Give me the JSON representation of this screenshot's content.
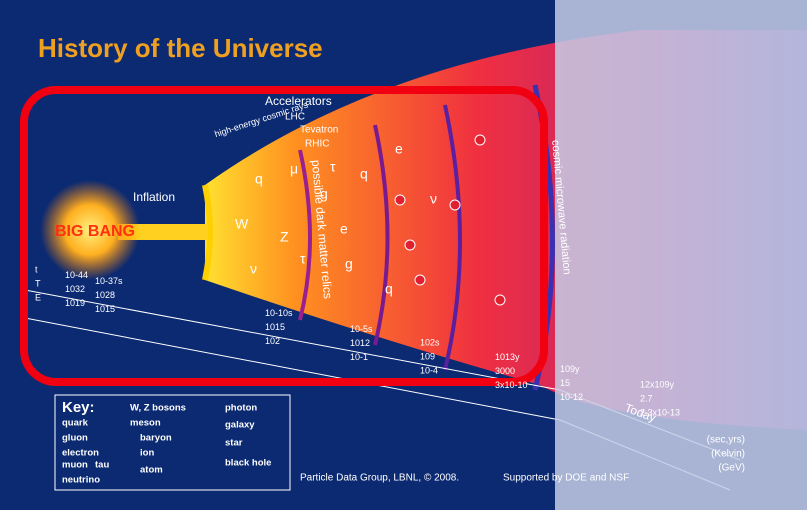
{
  "header": {
    "title": "History of the Universe"
  },
  "labels": {
    "accelerators": "Accelerators",
    "cosmic_rays": "high-energy cosmic rays",
    "lhc": "LHC",
    "tevatron": "Tevatron",
    "rhic": "RHIC",
    "inflation": "Inflation",
    "big_bang": "BIG BANG",
    "dark_matter": "possible dark matter relics",
    "cmb": "cosmic microwave radiation"
  },
  "timeline": {
    "rows": [
      [
        "t",
        "10-44",
        "10-37s",
        "10-10s",
        "10-5s",
        "102s",
        "1013y",
        "109y",
        "12x109y"
      ],
      [
        "T",
        "1032",
        "1028",
        "1015",
        "1012",
        "109",
        "3000",
        "15",
        "2.7"
      ],
      [
        "E",
        "1019",
        "1015",
        "102",
        "10-1",
        "10-4",
        "3x10-10",
        "10-12",
        "2.3x10-13"
      ]
    ],
    "today": "Today",
    "units": [
      "(sec,yrs)",
      "(Kelvin)",
      "(GeV)"
    ]
  },
  "particles": [
    "q",
    "μ",
    "τ",
    "W",
    "Z",
    "g",
    "e",
    "ν",
    "q",
    "τ",
    "e",
    "ν",
    "g",
    "q"
  ],
  "key": {
    "title": "Key:",
    "items": [
      "W, Z bosons",
      "photon",
      "quark",
      "meson",
      "galaxy",
      "gluon",
      "baryon",
      "star",
      "electron",
      "ion",
      "muon",
      "tau",
      "black hole",
      "atom",
      "neutrino"
    ]
  },
  "footer": {
    "credit": "Particle Data Group, LBNL, © 2008.",
    "support": "Supported by DOE and NSF"
  }
}
